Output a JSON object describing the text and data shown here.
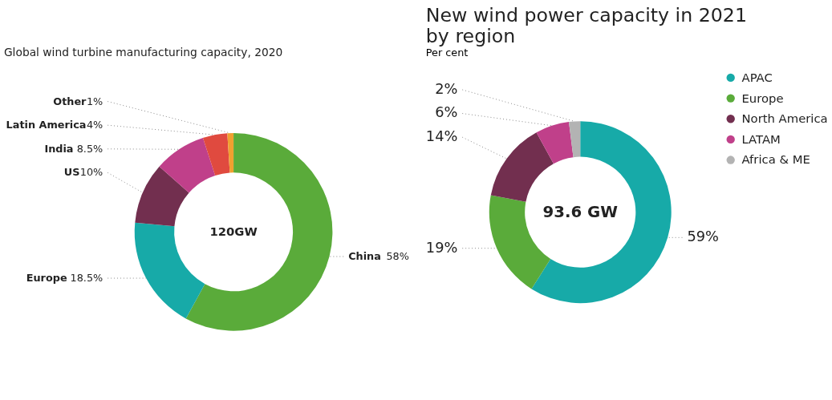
{
  "chart_data": [
    {
      "type": "donut",
      "title": "Global wind turbine manufacturing capacity, 2020",
      "categories": [
        "China",
        "Europe",
        "US",
        "India",
        "Latin America",
        "Other"
      ],
      "values": [
        58,
        18.5,
        10,
        8.5,
        4,
        1
      ],
      "colors": [
        "#5aab3a",
        "#17aaa8",
        "#722f4f",
        "#c0408a",
        "#e04a3f",
        "#f0a030"
      ],
      "value_labels": [
        "58%",
        "18.5%",
        "10%",
        "8.5%",
        "4%",
        "1%"
      ],
      "annotations": [
        "120GW"
      ],
      "legend": false
    },
    {
      "type": "donut",
      "title": "New wind power capacity in 2021 by region",
      "subtitle": "Per cent",
      "categories": [
        "APAC",
        "Europe",
        "North America",
        "LATAM",
        "Africa & ME"
      ],
      "values": [
        59,
        19,
        14,
        6,
        2
      ],
      "colors": [
        "#17aaa8",
        "#5aab3a",
        "#722f4f",
        "#c0408a",
        "#b3b3b3"
      ],
      "value_labels": [
        "59%",
        "19%",
        "14%",
        "6%",
        "2%"
      ],
      "annotations": [
        "93.6 GW"
      ],
      "legend": "top right"
    }
  ]
}
